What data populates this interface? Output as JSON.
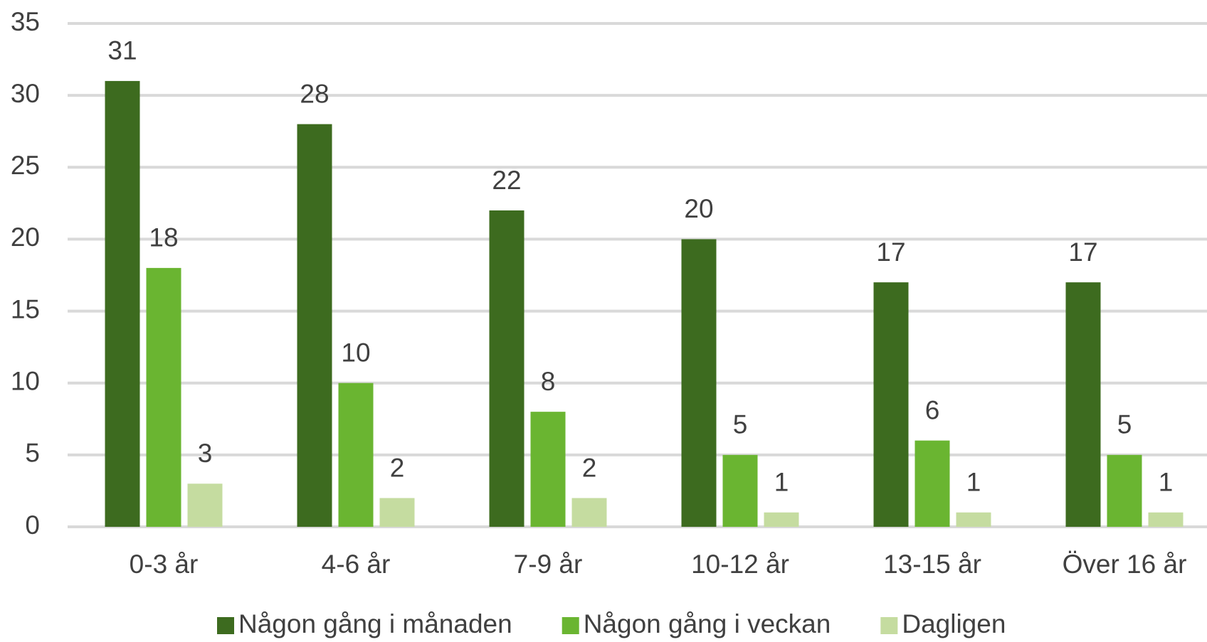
{
  "chart_data": {
    "type": "bar",
    "categories": [
      "0-3 år",
      "4-6 år",
      "7-9 år",
      "10-12 år",
      "13-15 år",
      "Över 16 år"
    ],
    "series": [
      {
        "name": "Någon gång i månaden",
        "color": "#3d6b1f",
        "values": [
          31,
          28,
          22,
          20,
          17,
          17
        ]
      },
      {
        "name": "Någon gång i veckan",
        "color": "#6ab531",
        "values": [
          18,
          10,
          8,
          5,
          6,
          5
        ]
      },
      {
        "name": "Dagligen",
        "color": "#c5dca0",
        "values": [
          3,
          2,
          2,
          1,
          1,
          1
        ]
      }
    ],
    "ylim": [
      0,
      35
    ],
    "yticks": [
      0,
      5,
      10,
      15,
      20,
      25,
      30,
      35
    ],
    "grid": true,
    "legend": "bottom"
  }
}
